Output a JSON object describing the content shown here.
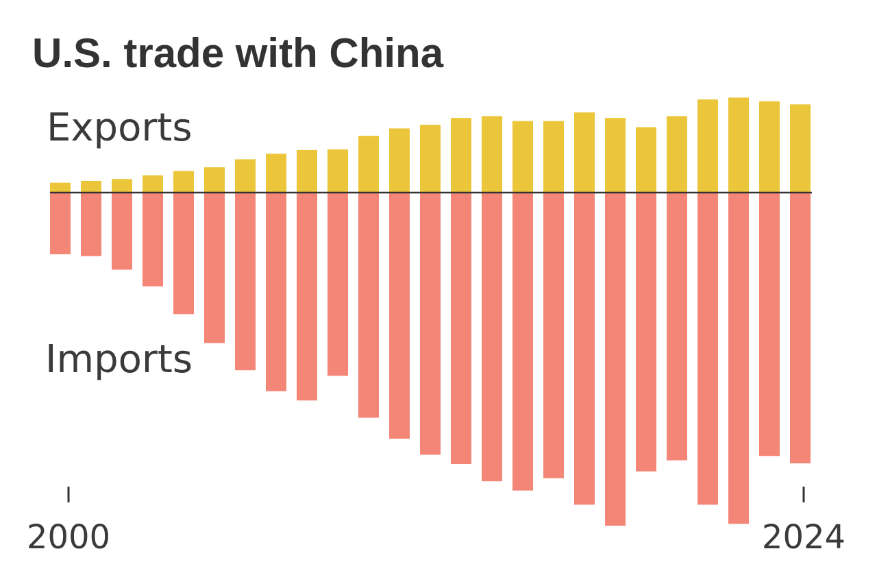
{
  "chart_data": {
    "type": "bar",
    "title": "U.S. trade with China",
    "x": [
      2000,
      2001,
      2002,
      2003,
      2004,
      2005,
      2006,
      2007,
      2008,
      2009,
      2010,
      2011,
      2012,
      2013,
      2014,
      2015,
      2016,
      2017,
      2018,
      2019,
      2020,
      2021,
      2022,
      2023,
      2024
    ],
    "x_tick_labels": [
      "2000",
      "2024"
    ],
    "series": [
      {
        "name": "Exports",
        "color": "#EBC63B",
        "values": [
          16,
          19,
          22,
          28,
          35,
          41,
          54,
          63,
          69,
          70,
          92,
          104,
          110,
          121,
          124,
          116,
          116,
          130,
          121,
          106,
          124,
          151,
          154,
          148,
          143
        ]
      },
      {
        "name": "Imports",
        "color": "#F48677",
        "values": [
          100,
          103,
          125,
          152,
          197,
          244,
          288,
          322,
          337,
          297,
          365,
          399,
          425,
          440,
          468,
          483,
          463,
          506,
          540,
          452,
          434,
          506,
          537,
          427,
          439
        ]
      }
    ],
    "baseline": 0,
    "grid": false,
    "legend": "inline labels, left"
  }
}
